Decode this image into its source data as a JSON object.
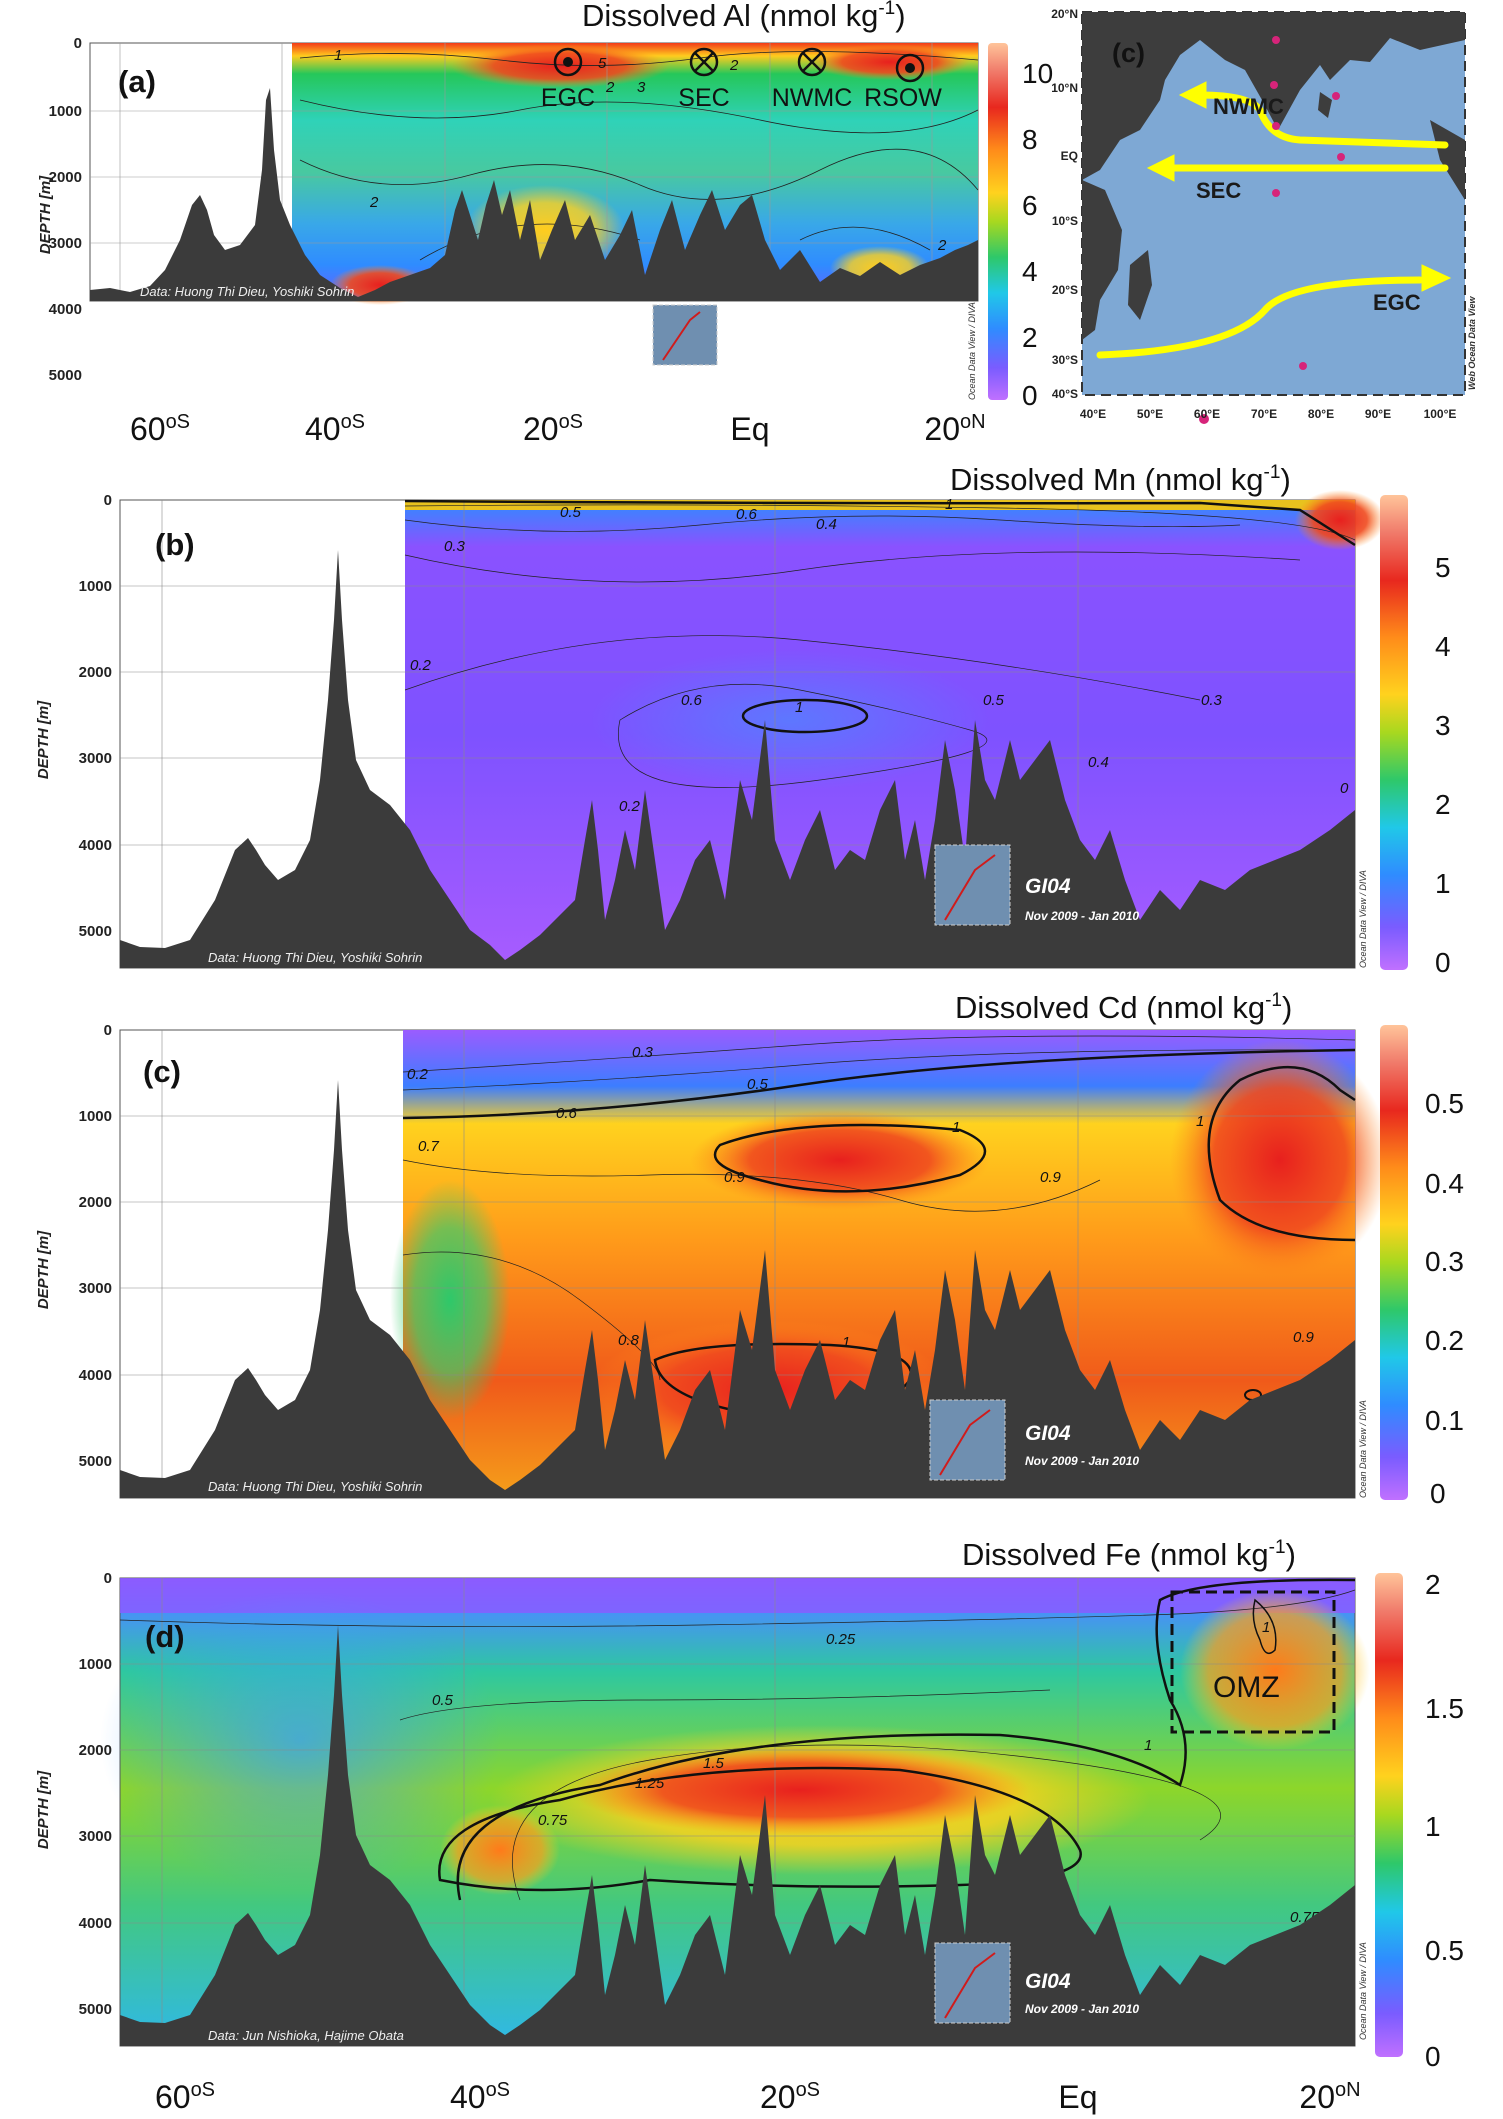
{
  "figure": {
    "x_ticks": [
      "60",
      "40",
      "20",
      "Eq",
      "20"
    ],
    "x_tick_suffix": [
      "oS",
      "oS",
      "oS",
      "",
      "oN"
    ],
    "depth_label": "DEPTH [m]",
    "depth_ticks": [
      "0",
      "1000",
      "2000",
      "3000",
      "4000",
      "5000"
    ],
    "inset": {
      "title": "GI04",
      "dates": "Nov 2009 - Jan 2010"
    },
    "odv_credit": "Ocean Data View / DIVA",
    "colors": {
      "seafloor": "#3b3b3b",
      "contour": "#111111",
      "current_arrow": "#ffff00"
    }
  },
  "chart_data": [
    {
      "type": "heatmap",
      "panel": "(a)",
      "title": "Dissolved Al (nmol kg",
      "title_sup": "-1",
      "title_end": ")",
      "xlabel": "",
      "ylabel": "DEPTH [m]",
      "x_range_deg": [
        -63,
        20
      ],
      "y_range_m": [
        0,
        5500
      ],
      "colorbar": {
        "min": 0,
        "max": 11,
        "ticks": [
          "0",
          "2",
          "4",
          "6",
          "8",
          "10"
        ]
      },
      "contour_labels": [
        "1",
        "2",
        "2",
        "2",
        "3",
        "3",
        "5",
        "2"
      ],
      "currents": [
        {
          "name": "EGC",
          "symbol": "out"
        },
        {
          "name": "SEC",
          "symbol": "in"
        },
        {
          "name": "NWMC",
          "symbol": "in"
        },
        {
          "name": "RSOW",
          "symbol": "out"
        }
      ],
      "credit": "Data: Huong Thi Dieu, Yoshiki Sohrin"
    },
    {
      "type": "map",
      "panel": "(c)",
      "lat_ticks": [
        "20°N",
        "10°N",
        "EQ",
        "10°S",
        "20°S",
        "30°S",
        "40°S"
      ],
      "lon_ticks": [
        "40°E",
        "50°E",
        "60°E",
        "70°E",
        "80°E",
        "90°E",
        "100°E"
      ],
      "currents": [
        "NWMC",
        "SEC",
        "EGC"
      ],
      "credit": "Web Ocean Data View"
    },
    {
      "type": "heatmap",
      "panel": "(b)",
      "title": "Dissolved Mn (nmol kg",
      "title_sup": "-1",
      "title_end": ")",
      "xlabel": "",
      "ylabel": "DEPTH [m]",
      "x_range_deg": [
        -63,
        20
      ],
      "y_range_m": [
        0,
        5500
      ],
      "colorbar": {
        "min": 0,
        "max": 5.8,
        "ticks": [
          "0",
          "1",
          "2",
          "3",
          "4",
          "5"
        ]
      },
      "contour_labels": [
        "0.5",
        "0.6",
        "0.4",
        "1",
        "0.3",
        "0.6",
        "1",
        "0.5",
        "0.3",
        "0.2",
        "0.2",
        "0.4",
        "0"
      ],
      "credit": "Data: Huong Thi Dieu, Yoshiki Sohrin"
    },
    {
      "type": "heatmap",
      "panel": "(c)",
      "title": "Dissolved Cd (nmol kg",
      "title_sup": "-1",
      "title_end": ")",
      "xlabel": "",
      "ylabel": "DEPTH [m]",
      "x_range_deg": [
        -63,
        20
      ],
      "y_range_m": [
        0,
        5500
      ],
      "colorbar": {
        "min": 0,
        "max": 0.58,
        "ticks": [
          "0",
          "0.1",
          "0.2",
          "0.3",
          "0.4",
          "0.5"
        ]
      },
      "contour_labels": [
        "0.3",
        "0.2",
        "0.5",
        "0.6",
        "0.7",
        "1",
        "0.9",
        "0.9",
        "1",
        "0.8",
        "1",
        "0.9"
      ],
      "credit": "Data: Huong Thi Dieu, Yoshiki Sohrin"
    },
    {
      "type": "heatmap",
      "panel": "(d)",
      "title": "Dissolved Fe (nmol kg",
      "title_sup": "-1",
      "title_end": ")",
      "xlabel": "",
      "ylabel": "DEPTH [m]",
      "x_range_deg": [
        -63,
        20
      ],
      "y_range_m": [
        0,
        5500
      ],
      "colorbar": {
        "min": 0,
        "max": 2.05,
        "ticks": [
          "0",
          "0.5",
          "1",
          "1.5",
          "2"
        ]
      },
      "contour_labels": [
        "0.25",
        "0.5",
        "1",
        "1.25",
        "1.5",
        "0.75",
        "1",
        "0.75"
      ],
      "annotation": "OMZ",
      "credit": "Data: Jun Nishioka, Hajime Obata"
    }
  ]
}
